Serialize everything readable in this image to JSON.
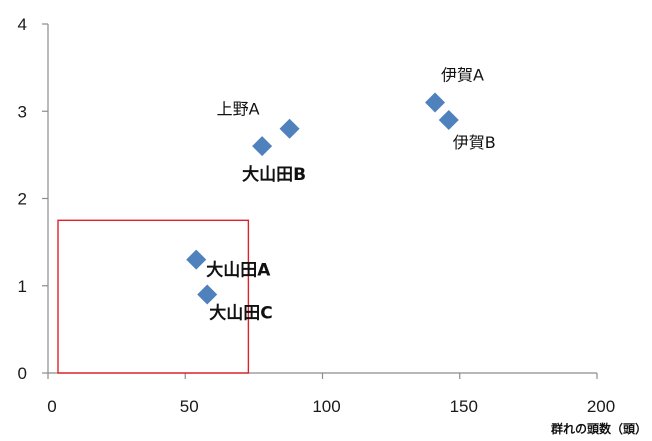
{
  "chart_data": {
    "type": "scatter",
    "title": "",
    "xlabel": "群れの頭数（頭）",
    "ylabel": "",
    "xlim": [
      0,
      200
    ],
    "ylim": [
      0,
      4
    ],
    "xticks": [
      "0",
      "50",
      "100",
      "150",
      "200"
    ],
    "yticks": [
      "0",
      "1",
      "2",
      "3",
      "4"
    ],
    "grid": false,
    "legend": "none",
    "marker": "diamond",
    "marker_color": "#4f81bd",
    "points": [
      {
        "label": "伊賀A",
        "x": 141,
        "y": 3.1,
        "emphasis": false
      },
      {
        "label": "伊賀B",
        "x": 146,
        "y": 2.9,
        "emphasis": false
      },
      {
        "label": "上野A",
        "x": 88,
        "y": 2.8,
        "emphasis": false
      },
      {
        "label": "大山田B",
        "x": 78,
        "y": 2.6,
        "emphasis": true
      },
      {
        "label": "大山田A",
        "x": 54,
        "y": 1.3,
        "emphasis": true
      },
      {
        "label": "大山田C",
        "x": 58,
        "y": 0.9,
        "emphasis": true
      }
    ],
    "highlight_box": {
      "x": [
        0,
        73
      ],
      "y": [
        0,
        1.75
      ],
      "color": "#e0202a"
    }
  }
}
